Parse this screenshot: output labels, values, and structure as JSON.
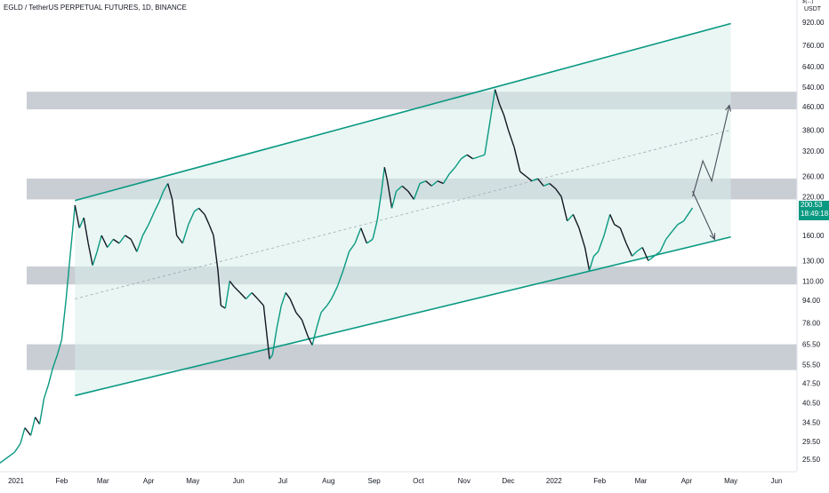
{
  "symbol_title": "EGLD / TetherUS PERPETUAL FUTURES, 1D, BINANCE",
  "currency_top": "$(...)",
  "currency": "USDT",
  "last_price": "200.53",
  "countdown": "18:49:18",
  "colors": {
    "channel": "#089981",
    "fill": "#d7efea",
    "zone": "#b7bcc6",
    "candle_up": "#089981",
    "candle_down": "#131722",
    "arrow": "#4a4f5a",
    "midline": "#9fa7b3"
  },
  "chart_data": {
    "type": "line",
    "title": "EGLD / TetherUS PERPETUAL FUTURES, 1D, BINANCE",
    "xlabel": "",
    "ylabel": "",
    "y_scale": "log",
    "y_ticks": [
      920.0,
      760.0,
      640.0,
      540.0,
      460.0,
      380.0,
      320.0,
      260.0,
      220.0,
      190.0,
      160.0,
      130.0,
      110.0,
      94.0,
      78.0,
      65.5,
      55.5,
      47.5,
      40.5,
      34.5,
      29.5,
      25.5
    ],
    "y_tick_labels": [
      "920.00",
      "760.00",
      "640.00",
      "540.00",
      "460.00",
      "380.00",
      "320.00",
      "260.00",
      "220.00",
      "190.00",
      "160.00",
      "130.00",
      "110.00",
      "94.00",
      "78.00",
      "65.50",
      "55.50",
      "47.50",
      "40.50",
      "34.50",
      "29.50",
      "25.50"
    ],
    "x_ticks": [
      {
        "label": "2021",
        "date": "2021-01-01"
      },
      {
        "label": "Feb",
        "date": "2021-02-01"
      },
      {
        "label": "Mar",
        "date": "2021-03-01"
      },
      {
        "label": "Apr",
        "date": "2021-04-01"
      },
      {
        "label": "May",
        "date": "2021-05-01"
      },
      {
        "label": "Jun",
        "date": "2021-06-01"
      },
      {
        "label": "Jul",
        "date": "2021-07-01"
      },
      {
        "label": "Aug",
        "date": "2021-08-01"
      },
      {
        "label": "Sep",
        "date": "2021-09-01"
      },
      {
        "label": "Oct",
        "date": "2021-10-01"
      },
      {
        "label": "Nov",
        "date": "2021-11-01"
      },
      {
        "label": "Dec",
        "date": "2021-12-01"
      },
      {
        "label": "2022",
        "date": "2022-01-01"
      },
      {
        "label": "Feb",
        "date": "2022-02-01"
      },
      {
        "label": "Mar",
        "date": "2022-03-01"
      },
      {
        "label": "Apr",
        "date": "2022-04-01"
      },
      {
        "label": "May",
        "date": "2022-05-01"
      },
      {
        "label": "Jun",
        "date": "2022-06-01"
      }
    ],
    "series": [
      {
        "points": [
          [
            "2020-12-20",
            24.5
          ],
          [
            "2020-12-31",
            27
          ],
          [
            "2021-01-04",
            29
          ],
          [
            "2021-01-07",
            33
          ],
          [
            "2021-01-11",
            31
          ],
          [
            "2021-01-14",
            36
          ],
          [
            "2021-01-17",
            34
          ],
          [
            "2021-01-20",
            42
          ],
          [
            "2021-01-23",
            47
          ],
          [
            "2021-01-26",
            54
          ],
          [
            "2021-01-29",
            60
          ],
          [
            "2021-02-01",
            68
          ],
          [
            "2021-02-04",
            95
          ],
          [
            "2021-02-07",
            140
          ],
          [
            "2021-02-09",
            180
          ],
          [
            "2021-02-10",
            205
          ],
          [
            "2021-02-13",
            170
          ],
          [
            "2021-02-16",
            185
          ],
          [
            "2021-02-19",
            150
          ],
          [
            "2021-02-22",
            125
          ],
          [
            "2021-02-25",
            140
          ],
          [
            "2021-02-28",
            160
          ],
          [
            "2021-03-04",
            145
          ],
          [
            "2021-03-08",
            155
          ],
          [
            "2021-03-12",
            150
          ],
          [
            "2021-03-16",
            160
          ],
          [
            "2021-03-20",
            155
          ],
          [
            "2021-03-24",
            140
          ],
          [
            "2021-03-28",
            160
          ],
          [
            "2021-04-01",
            175
          ],
          [
            "2021-04-05",
            195
          ],
          [
            "2021-04-08",
            210
          ],
          [
            "2021-04-11",
            230
          ],
          [
            "2021-04-14",
            245
          ],
          [
            "2021-04-17",
            215
          ],
          [
            "2021-04-20",
            160
          ],
          [
            "2021-04-24",
            150
          ],
          [
            "2021-04-28",
            175
          ],
          [
            "2021-05-02",
            195
          ],
          [
            "2021-05-05",
            200
          ],
          [
            "2021-05-09",
            190
          ],
          [
            "2021-05-12",
            175
          ],
          [
            "2021-05-15",
            160
          ],
          [
            "2021-05-18",
            120
          ],
          [
            "2021-05-20",
            90
          ],
          [
            "2021-05-23",
            88
          ],
          [
            "2021-05-26",
            110
          ],
          [
            "2021-05-29",
            105
          ],
          [
            "2021-06-02",
            100
          ],
          [
            "2021-06-06",
            95
          ],
          [
            "2021-06-10",
            100
          ],
          [
            "2021-06-14",
            95
          ],
          [
            "2021-06-18",
            90
          ],
          [
            "2021-06-22",
            58
          ],
          [
            "2021-06-24",
            60
          ],
          [
            "2021-06-27",
            75
          ],
          [
            "2021-06-30",
            90
          ],
          [
            "2021-07-03",
            100
          ],
          [
            "2021-07-06",
            95
          ],
          [
            "2021-07-10",
            85
          ],
          [
            "2021-07-14",
            80
          ],
          [
            "2021-07-18",
            70
          ],
          [
            "2021-07-21",
            65
          ],
          [
            "2021-07-24",
            75
          ],
          [
            "2021-07-27",
            85
          ],
          [
            "2021-07-31",
            90
          ],
          [
            "2021-08-03",
            95
          ],
          [
            "2021-08-07",
            105
          ],
          [
            "2021-08-11",
            120
          ],
          [
            "2021-08-15",
            140
          ],
          [
            "2021-08-19",
            150
          ],
          [
            "2021-08-23",
            170
          ],
          [
            "2021-08-27",
            150
          ],
          [
            "2021-08-31",
            155
          ],
          [
            "2021-09-03",
            180
          ],
          [
            "2021-09-06",
            230
          ],
          [
            "2021-09-08",
            280
          ],
          [
            "2021-09-10",
            250
          ],
          [
            "2021-09-13",
            200
          ],
          [
            "2021-09-16",
            230
          ],
          [
            "2021-09-20",
            240
          ],
          [
            "2021-09-24",
            230
          ],
          [
            "2021-09-28",
            215
          ],
          [
            "2021-10-02",
            245
          ],
          [
            "2021-10-06",
            250
          ],
          [
            "2021-10-10",
            240
          ],
          [
            "2021-10-14",
            250
          ],
          [
            "2021-10-18",
            245
          ],
          [
            "2021-10-22",
            265
          ],
          [
            "2021-10-26",
            280
          ],
          [
            "2021-10-30",
            300
          ],
          [
            "2021-11-03",
            310
          ],
          [
            "2021-11-07",
            300
          ],
          [
            "2021-11-11",
            305
          ],
          [
            "2021-11-15",
            310
          ],
          [
            "2021-11-19",
            420
          ],
          [
            "2021-11-22",
            530
          ],
          [
            "2021-11-25",
            470
          ],
          [
            "2021-11-28",
            430
          ],
          [
            "2021-12-01",
            380
          ],
          [
            "2021-12-05",
            330
          ],
          [
            "2021-12-09",
            270
          ],
          [
            "2021-12-13",
            260
          ],
          [
            "2021-12-17",
            250
          ],
          [
            "2021-12-21",
            255
          ],
          [
            "2021-12-25",
            240
          ],
          [
            "2021-12-29",
            245
          ],
          [
            "2022-01-02",
            235
          ],
          [
            "2022-01-06",
            220
          ],
          [
            "2022-01-10",
            180
          ],
          [
            "2022-01-14",
            190
          ],
          [
            "2022-01-18",
            170
          ],
          [
            "2022-01-22",
            145
          ],
          [
            "2022-01-25",
            120
          ],
          [
            "2022-01-28",
            135
          ],
          [
            "2022-01-31",
            140
          ],
          [
            "2022-02-04",
            160
          ],
          [
            "2022-02-08",
            190
          ],
          [
            "2022-02-11",
            175
          ],
          [
            "2022-02-15",
            170
          ],
          [
            "2022-02-19",
            150
          ],
          [
            "2022-02-23",
            135
          ],
          [
            "2022-02-26",
            140
          ],
          [
            "2022-03-02",
            145
          ],
          [
            "2022-03-06",
            130
          ],
          [
            "2022-03-10",
            135
          ],
          [
            "2022-03-14",
            140
          ],
          [
            "2022-03-18",
            155
          ],
          [
            "2022-03-22",
            165
          ],
          [
            "2022-03-26",
            175
          ],
          [
            "2022-03-30",
            180
          ],
          [
            "2022-04-02",
            190
          ],
          [
            "2022-04-05",
            200.53
          ]
        ]
      }
    ],
    "channel": {
      "upper": [
        [
          "2021-02-10",
          213
        ],
        [
          "2022-05-01",
          910
        ]
      ],
      "lower": [
        [
          "2021-02-10",
          43
        ],
        [
          "2022-05-01",
          158
        ]
      ],
      "mid": [
        [
          "2021-02-10",
          95
        ],
        [
          "2022-05-01",
          380
        ]
      ]
    },
    "zones": [
      {
        "from": "2021-01-01",
        "to": "2022-06-15",
        "low": 450,
        "high": 520
      },
      {
        "from": "2021-01-01",
        "to": "2022-06-15",
        "low": 215,
        "high": 255
      },
      {
        "from": "2021-01-01",
        "to": "2022-06-15",
        "low": 107,
        "high": 124
      },
      {
        "from": "2021-01-01",
        "to": "2022-06-15",
        "low": 53,
        "high": 65.5
      }
    ],
    "projections": [
      [
        [
          "2022-04-05",
          220
        ],
        [
          "2022-04-12",
          295
        ],
        [
          "2022-04-18",
          250
        ],
        [
          "2022-04-30",
          465
        ]
      ],
      [
        [
          "2022-04-05",
          230
        ],
        [
          "2022-04-20",
          155
        ]
      ]
    ],
    "grid": false,
    "legend": "none"
  }
}
